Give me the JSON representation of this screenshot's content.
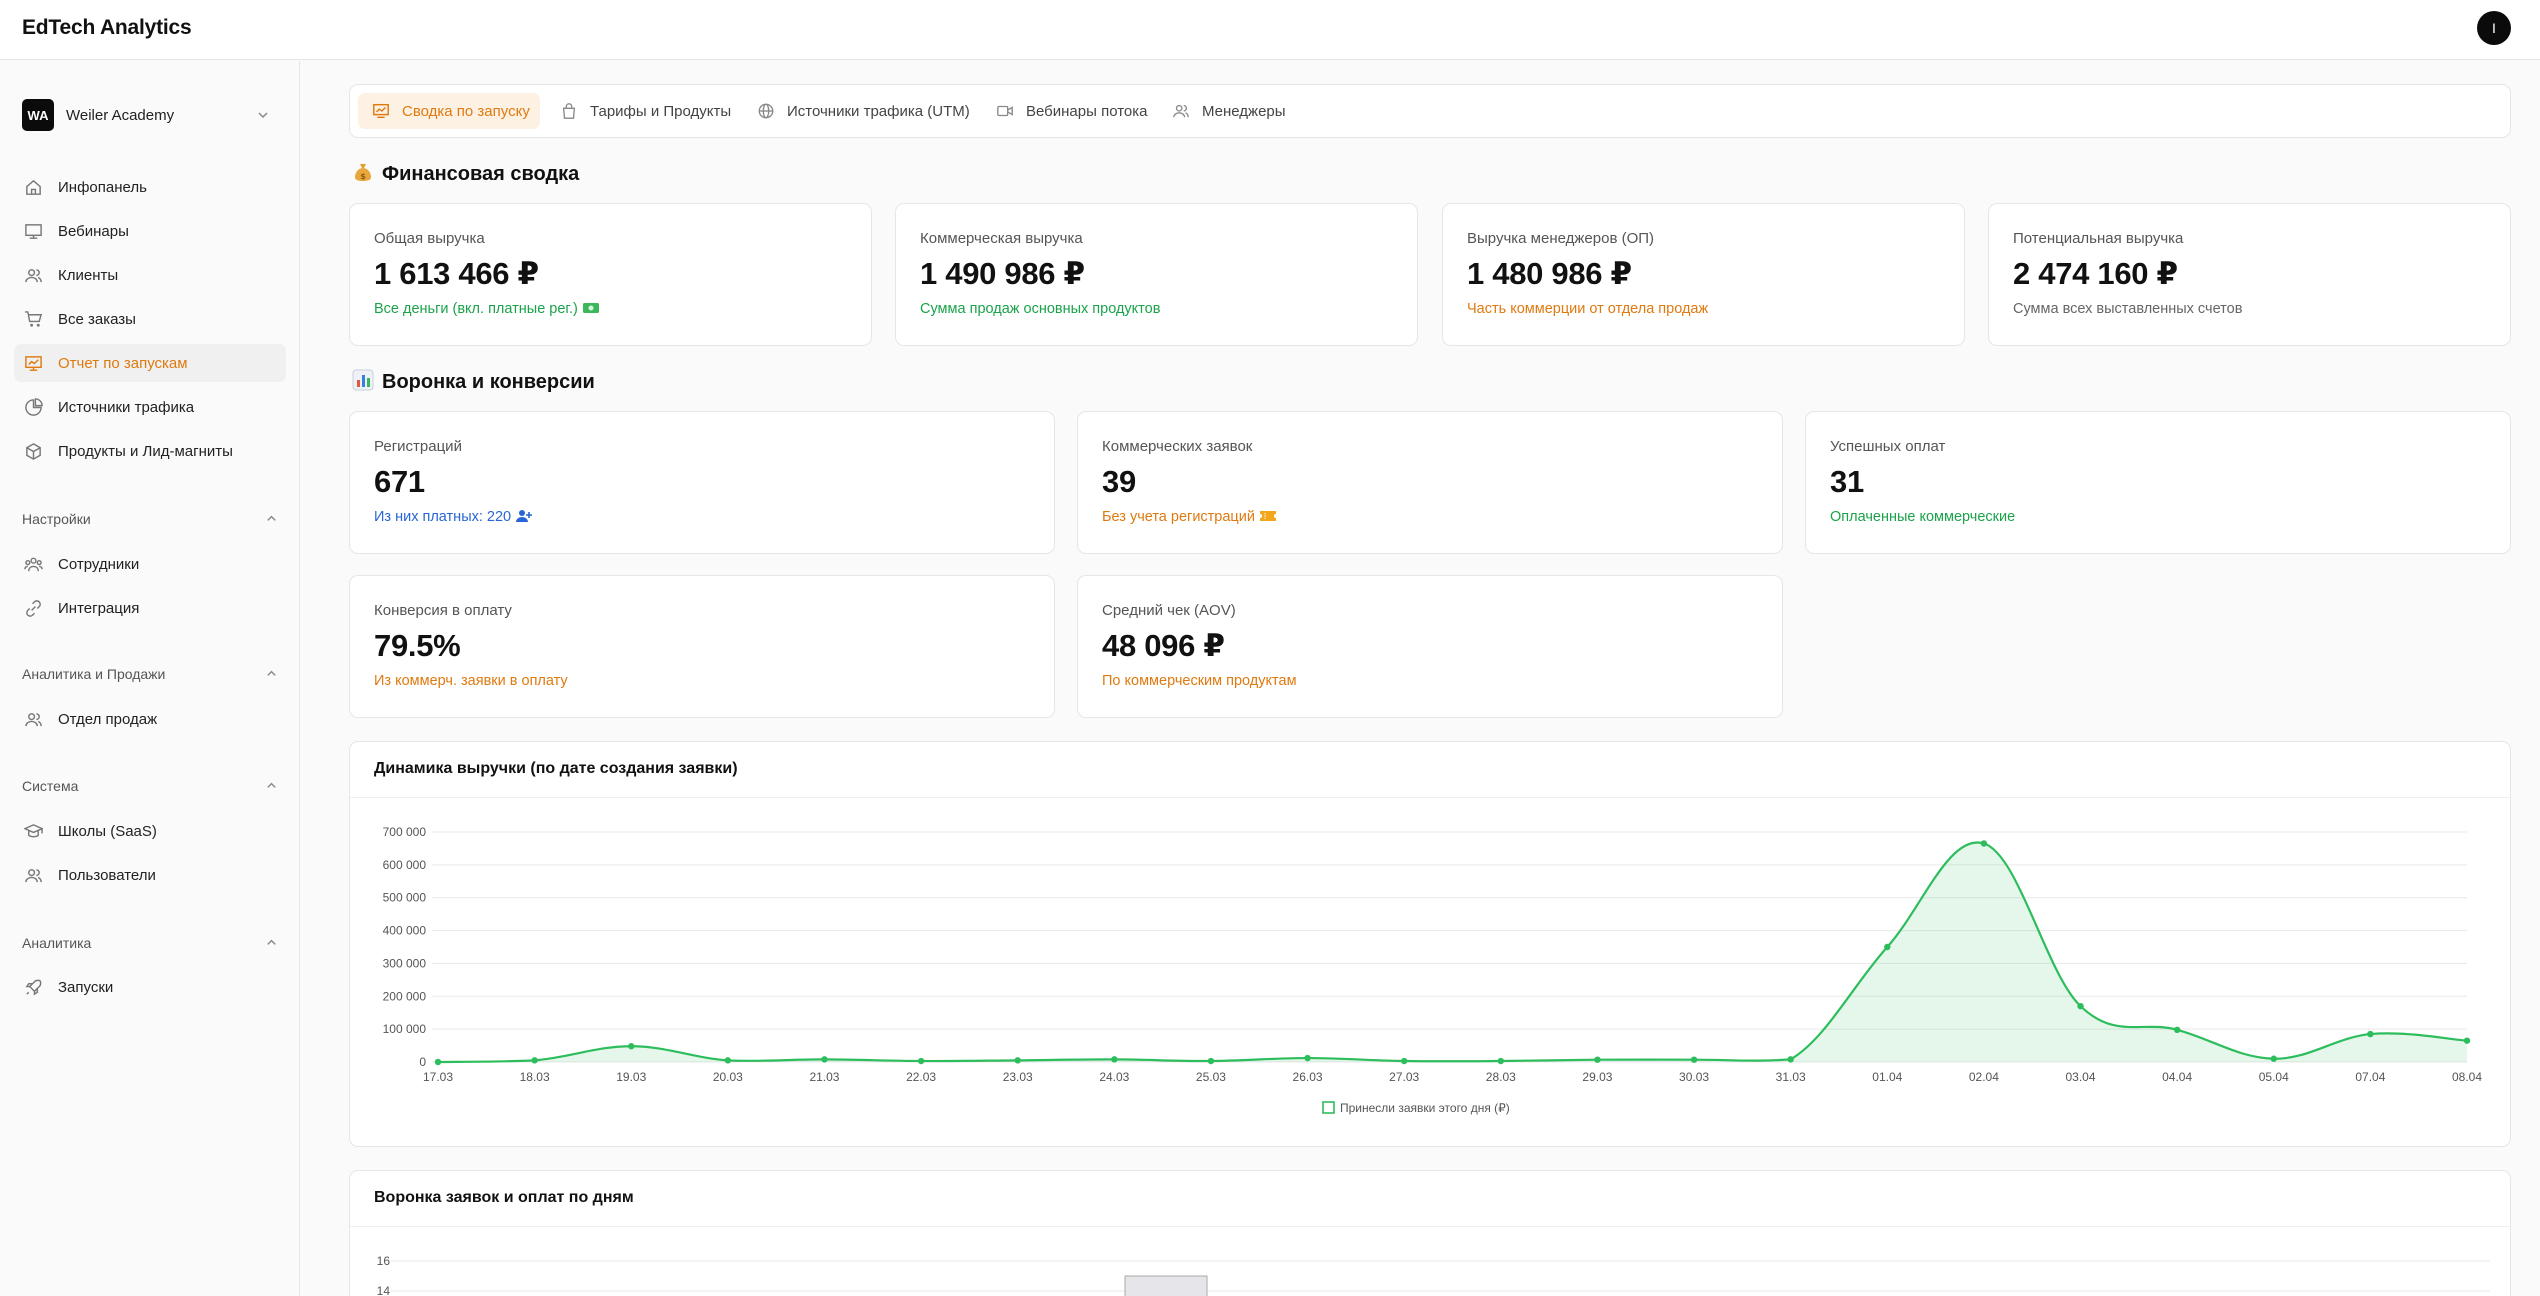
{
  "app": {
    "title": "EdTech Analytics",
    "user_initial": "I"
  },
  "school": {
    "logo": "WA",
    "name": "Weiler Academy"
  },
  "sidebar": {
    "main_items": [
      {
        "label": "Инфопанель",
        "icon": "home-icon"
      },
      {
        "label": "Вебинары",
        "icon": "presentation-icon"
      },
      {
        "label": "Клиенты",
        "icon": "users-icon"
      },
      {
        "label": "Все заказы",
        "icon": "cart-icon"
      },
      {
        "label": "Отчет по запускам",
        "icon": "report-icon",
        "active": true
      },
      {
        "label": "Источники трафика",
        "icon": "pie-chart-icon"
      },
      {
        "label": "Продукты и Лид-магниты",
        "icon": "box-icon"
      }
    ],
    "sections": [
      {
        "title": "Настройки",
        "items": [
          {
            "label": "Сотрудники",
            "icon": "team-icon"
          },
          {
            "label": "Интеграция",
            "icon": "link-icon"
          }
        ]
      },
      {
        "title": "Аналитика и Продажи",
        "items": [
          {
            "label": "Отдел продаж",
            "icon": "users-icon"
          }
        ]
      },
      {
        "title": "Система",
        "items": [
          {
            "label": "Школы (SaaS)",
            "icon": "graduation-cap-icon"
          },
          {
            "label": "Пользователи",
            "icon": "users-icon"
          }
        ]
      },
      {
        "title": "Аналитика",
        "items": [
          {
            "label": "Запуски",
            "icon": "rocket-icon"
          }
        ]
      }
    ]
  },
  "tabs": [
    {
      "label": "Сводка по запуску",
      "icon": "presentation-icon",
      "active": true
    },
    {
      "label": "Тарифы и Продукты",
      "icon": "bag-icon"
    },
    {
      "label": "Источники трафика (UTM)",
      "icon": "globe-icon"
    },
    {
      "label": "Вебинары потока",
      "icon": "video-icon"
    },
    {
      "label": "Менеджеры",
      "icon": "users-icon"
    }
  ],
  "finance": {
    "title": "Финансовая сводка",
    "cards": [
      {
        "label": "Общая выручка",
        "value": "1 613 466 ₽",
        "sub": "Все деньги (вкл. платные рег.)",
        "sub_color": "green",
        "sub_icon": "money-icon"
      },
      {
        "label": "Коммерческая выручка",
        "value": "1 490 986 ₽",
        "sub": "Сумма продаж основных продуктов",
        "sub_color": "green"
      },
      {
        "label": "Выручка менеджеров (ОП)",
        "value": "1 480 986 ₽",
        "sub": "Часть коммерции от отдела продаж",
        "sub_color": "orange"
      },
      {
        "label": "Потенциальная выручка",
        "value": "2 474 160 ₽",
        "sub": "Сумма всех выставленных счетов",
        "sub_color": "grey"
      }
    ]
  },
  "funnel": {
    "title": "Воронка и конверсии",
    "cards": [
      {
        "label": "Регистраций",
        "value": "671",
        "sub": "Из них платных: 220",
        "sub_color": "blue",
        "sub_icon": "user-plus-icon"
      },
      {
        "label": "Коммерческих заявок",
        "value": "39",
        "sub": "Без учета регистраций",
        "sub_color": "orange",
        "sub_icon": "ticket-icon"
      },
      {
        "label": "Успешных оплат",
        "value": "31",
        "sub": "Оплаченные коммерческие",
        "sub_color": "green"
      },
      {
        "label": "Конверсия в оплату",
        "value": "79.5%",
        "sub": "Из коммерч. заявки в оплату",
        "sub_color": "orange"
      },
      {
        "label": "Средний чек (AOV)",
        "value": "48 096 ₽",
        "sub": "По коммерческим продуктам",
        "sub_color": "orange"
      }
    ]
  },
  "colors": {
    "accent": "#e07a10",
    "green": "#1aa34a",
    "blue": "#2866d6",
    "line": "#2dbd5c"
  },
  "chart_data": [
    {
      "type": "area",
      "title": "Динамика выручки (по дате создания заявки)",
      "categories": [
        "17.03",
        "18.03",
        "19.03",
        "20.03",
        "21.03",
        "22.03",
        "23.03",
        "24.03",
        "25.03",
        "26.03",
        "27.03",
        "28.03",
        "29.03",
        "30.03",
        "31.03",
        "01.04",
        "02.04",
        "03.04",
        "04.04",
        "05.04",
        "07.04",
        "08.04"
      ],
      "series": [
        {
          "name": "Принесли заявки этого дня (₽)",
          "values": [
            0,
            5000,
            48000,
            5000,
            8000,
            3000,
            5000,
            8000,
            3000,
            12000,
            3000,
            3000,
            7000,
            7000,
            8000,
            350000,
            665000,
            170000,
            98000,
            10000,
            85000,
            65000
          ]
        }
      ],
      "ylim": [
        0,
        700000
      ],
      "yticks": [
        "0",
        "100 000",
        "200 000",
        "300 000",
        "400 000",
        "500 000",
        "600 000",
        "700 000"
      ],
      "grid": true,
      "legend": "bottom"
    },
    {
      "type": "bar",
      "title": "Воронка заявок и оплат по дням",
      "yticks": [
        "14",
        "16"
      ],
      "values_visible": [
        14
      ]
    }
  ]
}
